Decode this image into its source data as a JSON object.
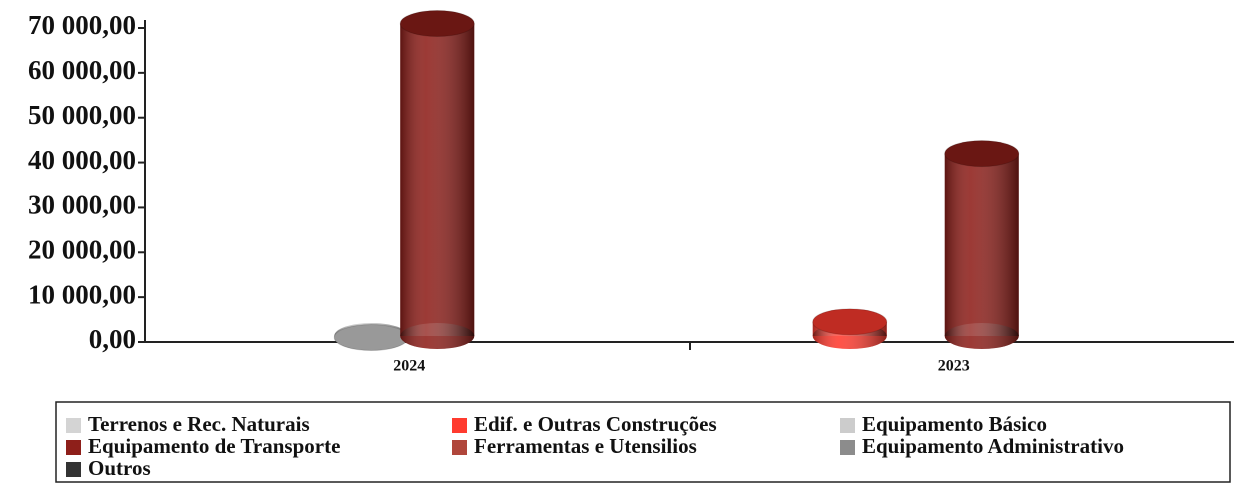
{
  "chart_data": {
    "type": "bar3d",
    "categories": [
      "2024",
      "2023"
    ],
    "series": [
      {
        "name": "Terrenos e Rec. Naturais",
        "color": "#d4d4d4",
        "values": [
          null,
          null
        ]
      },
      {
        "name": "Edif. e Outras Construções",
        "color": "#ff3b2f",
        "values": [
          null,
          4500
        ]
      },
      {
        "name": "Equipamento Básico",
        "color": "#cccccc",
        "values": [
          1000,
          null
        ]
      },
      {
        "name": "Equipamento de Transporte",
        "color": "#8e1f1a",
        "values": [
          71000,
          42000
        ]
      },
      {
        "name": "Ferramentas e Utensilios",
        "color": "#b0463b",
        "values": [
          null,
          null
        ]
      },
      {
        "name": "Equipamento Administrativo",
        "color": "#8c8c8c",
        "values": [
          null,
          null
        ]
      },
      {
        "name": "Outros",
        "color": "#333333",
        "values": [
          null,
          null
        ]
      }
    ],
    "ylim": [
      0,
      70000
    ],
    "yticks": [
      {
        "value": 0,
        "label": "0,00"
      },
      {
        "value": 10000,
        "label": "10 000,00"
      },
      {
        "value": 20000,
        "label": "20 000,00"
      },
      {
        "value": 30000,
        "label": "30 000,00"
      },
      {
        "value": 40000,
        "label": "40 000,00"
      },
      {
        "value": 50000,
        "label": "50 000,00"
      },
      {
        "value": 60000,
        "label": "60 000,00"
      },
      {
        "value": 70000,
        "label": "70 000,00"
      }
    ]
  }
}
